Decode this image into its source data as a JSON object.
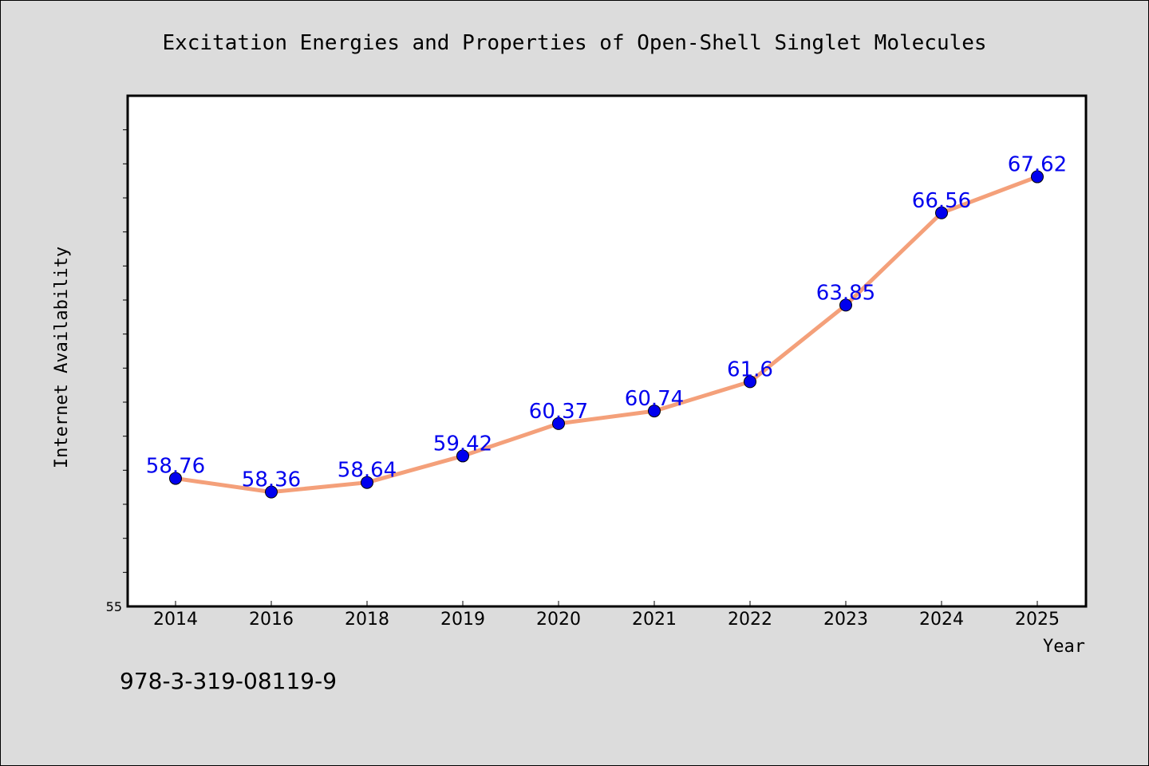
{
  "chart_data": {
    "type": "line",
    "title": "Excitation Energies and Properties of Open-Shell Singlet Molecules",
    "xlabel": "Year",
    "ylabel": "Internet Availability",
    "categories": [
      "2014",
      "2016",
      "2018",
      "2019",
      "2020",
      "2021",
      "2022",
      "2023",
      "2024",
      "2025"
    ],
    "series": [
      {
        "values": [
          58.76,
          58.36,
          58.64,
          59.42,
          60.37,
          60.74,
          61.6,
          63.85,
          66.56,
          67.62
        ],
        "labels": [
          "58.76",
          "58.36",
          "58.64",
          "59.42",
          "60.37",
          "60.74",
          "61.6",
          "63.85",
          "66.56",
          "67.62"
        ],
        "line_color": "#f4a07a",
        "marker_color": "#0000ee"
      }
    ],
    "ylim": [
      55,
      70
    ],
    "y_min_label": "55",
    "grid": false,
    "legend": "none"
  },
  "footer": {
    "isbn": "978-3-319-08119-9"
  },
  "colors": {
    "background": "#dcdcdc",
    "plot_background": "#ffffff",
    "line": "#f4a07a",
    "marker": "#0000ee",
    "data_label": "#0000ee"
  }
}
